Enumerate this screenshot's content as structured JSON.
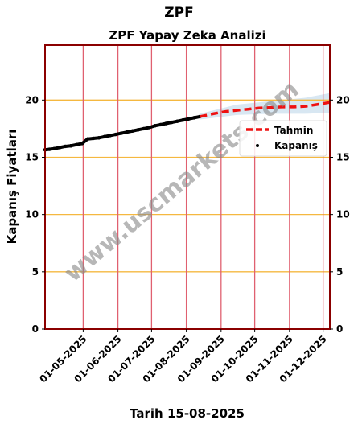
{
  "page": {
    "suptitle": "ZPF",
    "footer": "Tarih 15-08-2025",
    "watermark": "www.uscmarkets.com"
  },
  "chart_data": {
    "type": "line",
    "title": "ZPF Yapay Zeka Analizi",
    "xlabel": "",
    "ylabel": "Kapanış Fiyatları",
    "ylim": [
      0,
      24.8
    ],
    "yticks": [
      0,
      5,
      10,
      15,
      20
    ],
    "ytick_labels": [
      "0",
      "5",
      "10",
      "15",
      "20"
    ],
    "xlim": [
      "2025-03-28",
      "2025-12-07"
    ],
    "xticks": [
      "2025-05-01",
      "2025-06-01",
      "2025-07-01",
      "2025-08-01",
      "2025-09-01",
      "2025-10-01",
      "2025-11-01",
      "2025-12-01"
    ],
    "xtick_labels": [
      "01-05-2025",
      "01-06-2025",
      "01-07-2025",
      "01-08-2025",
      "01-09-2025",
      "01-10-2025",
      "01-11-2025",
      "01-12-2025"
    ],
    "grid": true,
    "legend_position": "right",
    "colors": {
      "close": "#000000",
      "forecast": "#ee1111",
      "band": "#b8d4e8",
      "vgrid": "#e06070",
      "hgrid": "#f5b840",
      "frame": "#8b0000"
    },
    "series": [
      {
        "name": "Kapanış",
        "style": "scatter",
        "x": [
          "2025-03-28",
          "2025-04-01",
          "2025-04-05",
          "2025-04-10",
          "2025-04-15",
          "2025-04-20",
          "2025-04-25",
          "2025-04-30",
          "2025-05-05",
          "2025-05-10",
          "2025-05-15",
          "2025-05-20",
          "2025-05-25",
          "2025-05-30",
          "2025-06-04",
          "2025-06-09",
          "2025-06-14",
          "2025-06-19",
          "2025-06-24",
          "2025-06-29",
          "2025-07-04",
          "2025-07-09",
          "2025-07-14",
          "2025-07-19",
          "2025-07-24",
          "2025-07-29",
          "2025-08-03",
          "2025-08-08",
          "2025-08-13"
        ],
        "y": [
          15.65,
          15.7,
          15.75,
          15.85,
          15.95,
          16.0,
          16.1,
          16.2,
          16.6,
          16.65,
          16.7,
          16.8,
          16.9,
          17.0,
          17.1,
          17.2,
          17.3,
          17.4,
          17.5,
          17.6,
          17.75,
          17.85,
          17.95,
          18.05,
          18.15,
          18.25,
          18.35,
          18.45,
          18.55
        ]
      },
      {
        "name": "Tahmin",
        "style": "dashed-line",
        "x": [
          "2025-08-13",
          "2025-08-25",
          "2025-09-05",
          "2025-09-15",
          "2025-09-25",
          "2025-10-05",
          "2025-10-15",
          "2025-10-25",
          "2025-11-05",
          "2025-11-15",
          "2025-11-25",
          "2025-12-07"
        ],
        "y": [
          18.55,
          18.8,
          19.0,
          19.1,
          19.2,
          19.3,
          19.35,
          19.4,
          19.4,
          19.45,
          19.6,
          19.8
        ]
      }
    ],
    "band": {
      "x": [
        "2025-08-13",
        "2025-09-15",
        "2025-10-15",
        "2025-11-15",
        "2025-12-07"
      ],
      "lower": [
        18.3,
        18.7,
        18.8,
        18.8,
        18.9
      ],
      "upper": [
        18.8,
        19.6,
        19.9,
        20.2,
        20.6
      ]
    }
  }
}
